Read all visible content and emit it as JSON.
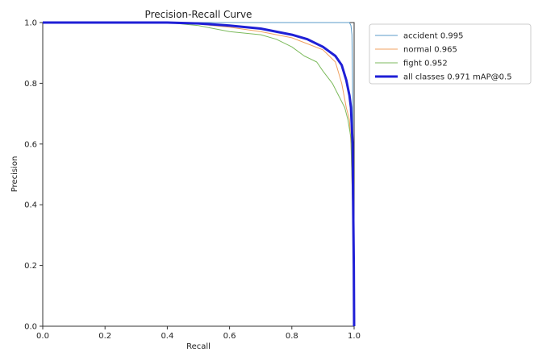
{
  "chart_data": {
    "type": "line",
    "title": "Precision-Recall Curve",
    "xlabel": "Recall",
    "ylabel": "Precision",
    "xlim": [
      0,
      1
    ],
    "ylim": [
      0,
      1
    ],
    "xticks": [
      "0.0",
      "0.2",
      "0.4",
      "0.6",
      "0.8",
      "1.0"
    ],
    "yticks": [
      "0.0",
      "0.2",
      "0.4",
      "0.6",
      "0.8",
      "1.0"
    ],
    "grid": false,
    "legend_position": "outside-top-right",
    "series": [
      {
        "name": "accident 0.995",
        "color": "#5b9bc8",
        "line_width": "thin",
        "points": [
          [
            0,
            1
          ],
          [
            0.9,
            1
          ],
          [
            0.975,
            1
          ],
          [
            0.985,
            1
          ],
          [
            0.99,
            0.99
          ],
          [
            0.993,
            0.96
          ],
          [
            0.995,
            0.8
          ],
          [
            0.997,
            0.5
          ],
          [
            0.998,
            0.2
          ],
          [
            1,
            0
          ]
        ]
      },
      {
        "name": "normal 0.965",
        "color": "#f0a060",
        "line_width": "thin",
        "points": [
          [
            0,
            1
          ],
          [
            0.4,
            1
          ],
          [
            0.5,
            0.995
          ],
          [
            0.6,
            0.985
          ],
          [
            0.7,
            0.97
          ],
          [
            0.8,
            0.95
          ],
          [
            0.85,
            0.93
          ],
          [
            0.9,
            0.91
          ],
          [
            0.94,
            0.87
          ],
          [
            0.96,
            0.8
          ],
          [
            0.975,
            0.72
          ],
          [
            0.985,
            0.68
          ],
          [
            0.99,
            0.6
          ],
          [
            0.995,
            0.4
          ],
          [
            0.998,
            0.2
          ],
          [
            1,
            0
          ]
        ]
      },
      {
        "name": "fight 0.952",
        "color": "#7cba5c",
        "line_width": "thin",
        "points": [
          [
            0,
            1
          ],
          [
            0.4,
            1
          ],
          [
            0.5,
            0.99
          ],
          [
            0.6,
            0.97
          ],
          [
            0.7,
            0.96
          ],
          [
            0.75,
            0.945
          ],
          [
            0.8,
            0.92
          ],
          [
            0.84,
            0.89
          ],
          [
            0.88,
            0.87
          ],
          [
            0.9,
            0.84
          ],
          [
            0.93,
            0.8
          ],
          [
            0.95,
            0.76
          ],
          [
            0.97,
            0.72
          ],
          [
            0.98,
            0.68
          ],
          [
            0.99,
            0.62
          ],
          [
            0.995,
            0.4
          ],
          [
            0.998,
            0.2
          ],
          [
            1,
            0
          ]
        ]
      },
      {
        "name": "all classes 0.971 mAP@0.5",
        "color": "#1f1fd6",
        "line_width": "thick",
        "points": [
          [
            0,
            1
          ],
          [
            0.4,
            1
          ],
          [
            0.5,
            0.997
          ],
          [
            0.6,
            0.99
          ],
          [
            0.7,
            0.98
          ],
          [
            0.8,
            0.96
          ],
          [
            0.85,
            0.945
          ],
          [
            0.9,
            0.92
          ],
          [
            0.94,
            0.89
          ],
          [
            0.96,
            0.86
          ],
          [
            0.975,
            0.81
          ],
          [
            0.985,
            0.76
          ],
          [
            0.99,
            0.72
          ],
          [
            0.995,
            0.6
          ],
          [
            0.997,
            0.4
          ],
          [
            0.999,
            0.2
          ],
          [
            1,
            0
          ]
        ]
      }
    ]
  }
}
